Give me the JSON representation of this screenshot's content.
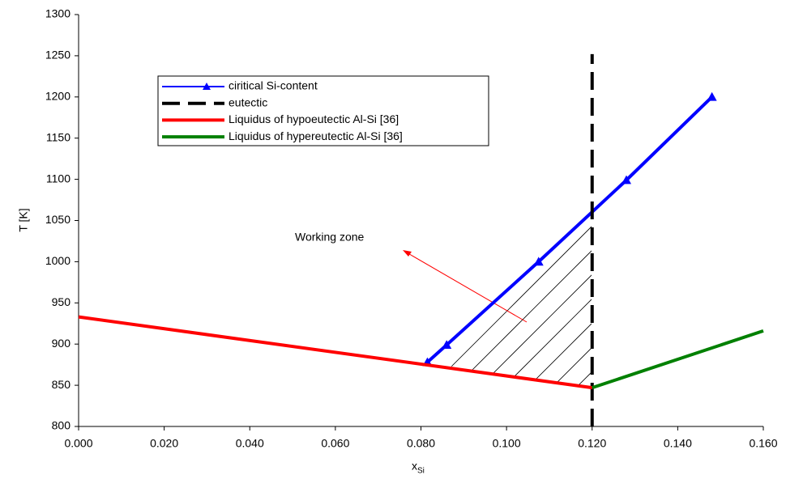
{
  "chart_data": {
    "type": "line",
    "ylabel": "T [K]",
    "xlabel": "x",
    "xlabel_sub": "Si",
    "xlim": [
      0,
      0.16
    ],
    "xticks": [
      {
        "value": 0,
        "label": "0.000"
      },
      {
        "value": 0.02,
        "label": "0.020"
      },
      {
        "value": 0.04,
        "label": "0.040"
      },
      {
        "value": 0.06,
        "label": "0.060"
      },
      {
        "value": 0.08,
        "label": "0.080"
      },
      {
        "value": 0.1,
        "label": "0.100"
      },
      {
        "value": 0.12,
        "label": "0.120"
      },
      {
        "value": 0.14,
        "label": "0.140"
      },
      {
        "value": 0.16,
        "label": "0.160"
      }
    ],
    "ylim": [
      800,
      1300
    ],
    "yticks": [
      800,
      850,
      900,
      950,
      1000,
      1050,
      1100,
      1150,
      1200,
      1250,
      1300
    ],
    "annotation": "Working zone",
    "series": [
      {
        "name": "ciritical Si-content",
        "color": "#0000ff",
        "marker": "triangle",
        "x": [
          0.0815,
          0.086,
          0.1075,
          0.128,
          0.148
        ],
        "values": [
          878,
          899,
          1000,
          1099,
          1200
        ]
      },
      {
        "name": "eutectic",
        "color": "#000000",
        "dash": true,
        "x": [
          0.12,
          0.12
        ],
        "values": [
          800,
          1252
        ]
      },
      {
        "name": "Liquidus of hypoeutectic Al-Si [36]",
        "color": "#ff0000",
        "x": [
          0,
          0.12
        ],
        "values": [
          933,
          847
        ]
      },
      {
        "name": "Liquidus of hypereutectic Al-Si [36]",
        "color": "#008000",
        "x": [
          0.12,
          0.16
        ],
        "values": [
          847,
          916
        ]
      }
    ]
  }
}
